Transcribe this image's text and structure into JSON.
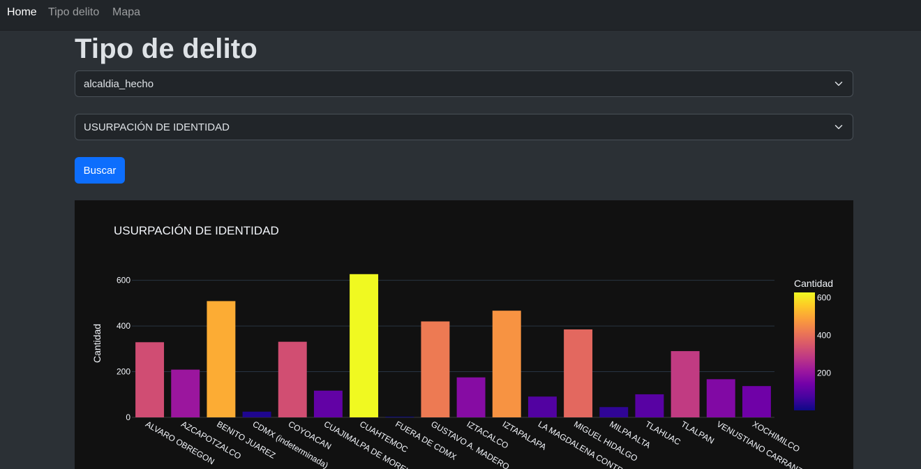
{
  "navbar": {
    "links": [
      {
        "label": "Home",
        "active": true
      },
      {
        "label": "Tipo delito",
        "active": false
      },
      {
        "label": "Mapa",
        "active": false
      }
    ]
  },
  "page": {
    "title": "Tipo de delito"
  },
  "filters": {
    "field_select_value": "alcaldia_hecho",
    "crime_select_value": "USURPACIÓN DE IDENTIDAD",
    "search_button_label": "Buscar"
  },
  "chart_data": {
    "type": "bar",
    "title": "USURPACIÓN DE IDENTIDAD",
    "xlabel": "",
    "ylabel": "Cantidad",
    "ylim": [
      0,
      660
    ],
    "yticks": [
      0,
      200,
      400,
      600
    ],
    "grid": true,
    "categories": [
      "ALVARO OBREGON",
      "AZCAPOTZALCO",
      "BENITO JUAREZ",
      "CDMX (indeterminada)",
      "COYOACAN",
      "CUAJIMALPA DE MORELOS",
      "CUAHTEMOC",
      "FUERA DE CDMX",
      "GUSTAVO A. MADERO",
      "IZTACALCO",
      "IZTAPALAPA",
      "LA MAGDALENA CONTRERAS",
      "MIGUEL HIDALGO",
      "MILPA ALTA",
      "TLAHUAC",
      "TLALPAN",
      "VENUSTIANO CARRANZA",
      "XOCHIMILCO"
    ],
    "values": [
      329,
      209,
      509,
      25,
      331,
      117,
      627,
      3,
      420,
      175,
      467,
      91,
      385,
      45,
      101,
      290,
      167,
      137
    ],
    "colorbar": {
      "title": "Cantidad",
      "ticks": [
        200,
        400,
        600
      ],
      "range": [
        3,
        627
      ],
      "colorscale": [
        "#0d0887",
        "#46039f",
        "#7201a8",
        "#9c179e",
        "#bd3786",
        "#d8576b",
        "#ed7953",
        "#fb9f3a",
        "#fdca26",
        "#f0f921"
      ]
    }
  }
}
